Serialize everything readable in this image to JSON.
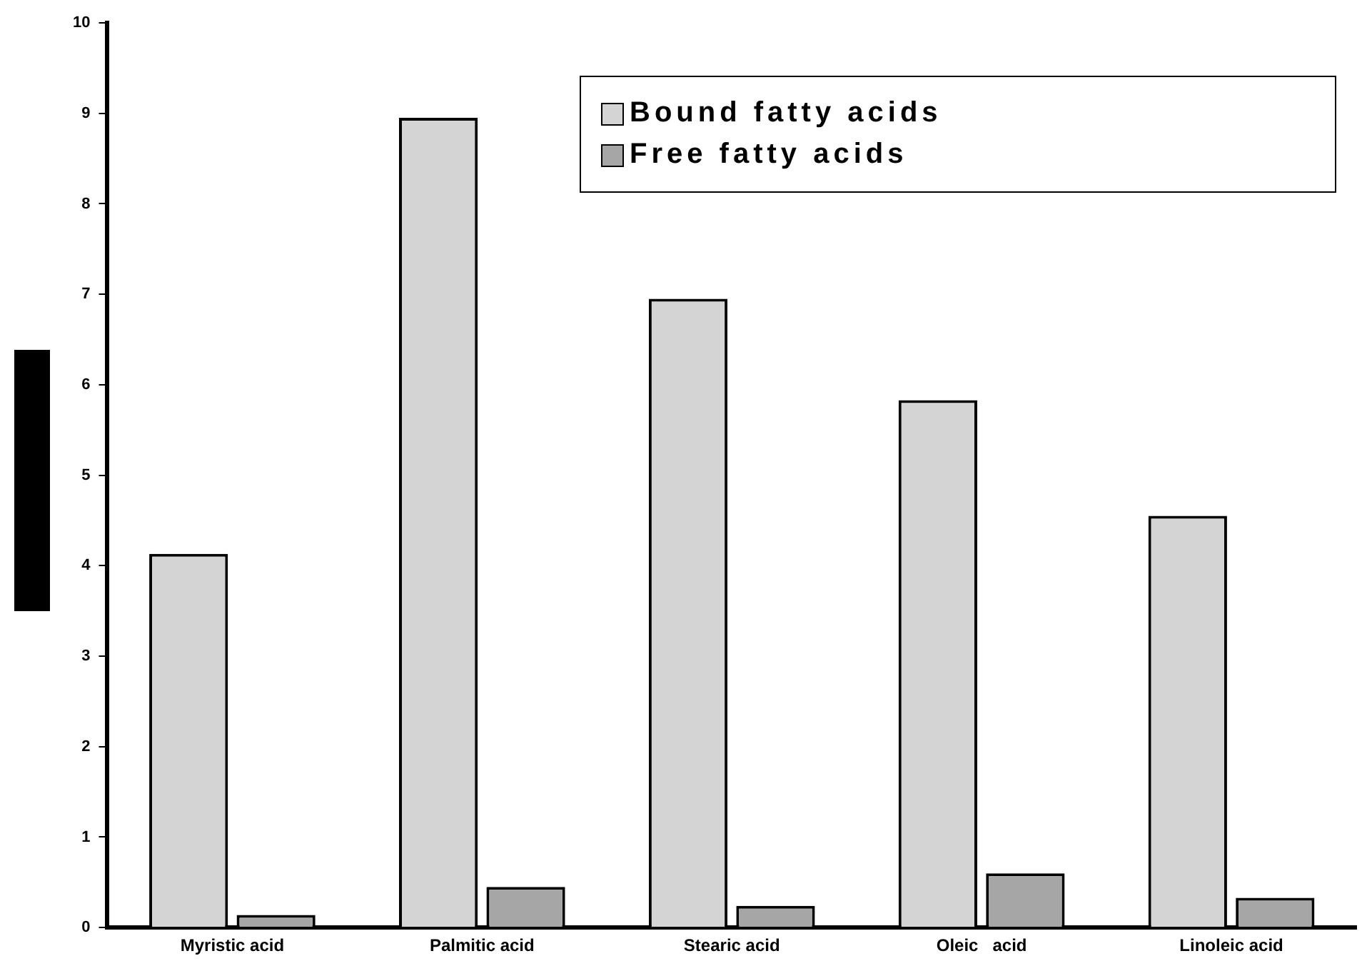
{
  "chart_data": {
    "type": "bar",
    "categories": [
      "Myristic acid",
      "Palmitic acid",
      "Stearic acid",
      "Oleic   acid",
      "Linoleic acid"
    ],
    "series": [
      {
        "name": "Bound fatty acids",
        "color": "#d4d4d4",
        "values": [
          4.13,
          8.95,
          6.95,
          5.83,
          4.55
        ]
      },
      {
        "name": "Free fatty acids",
        "color": "#a6a6a6",
        "values": [
          0.14,
          0.45,
          0.24,
          0.6,
          0.33
        ]
      }
    ],
    "ylim": [
      0,
      10
    ],
    "yticks": [
      0,
      1,
      2,
      3,
      4,
      5,
      6,
      7,
      8,
      9,
      10
    ],
    "grid": false,
    "legend": "top right"
  }
}
